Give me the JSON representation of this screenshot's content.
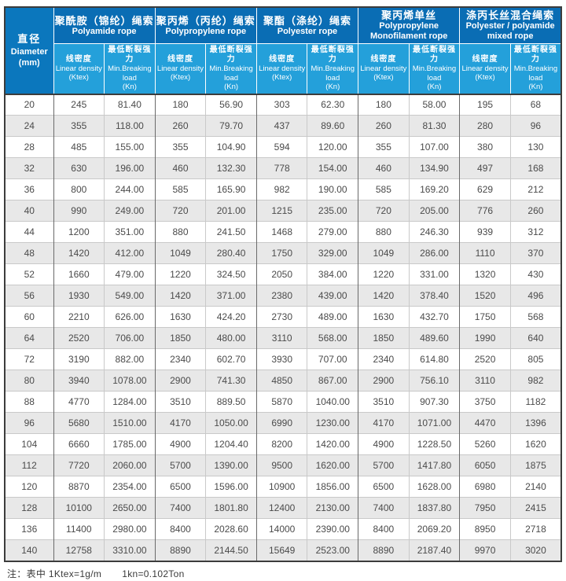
{
  "colors": {
    "header_dark": "#0a6db4",
    "header_light": "#24a0da",
    "diameter_bg": "#0b77bd",
    "stripe": "#e8e8e8",
    "border_dark": "#3c3c3c",
    "border_light": "#c9c9c9"
  },
  "table": {
    "diameter_header": {
      "zh": "直径",
      "en": "Diameter",
      "unit": "(mm)"
    },
    "groups": [
      {
        "zh": "聚酰胺（锦纶）绳索",
        "en": "Polyamide rope"
      },
      {
        "zh": "聚丙烯（丙纶）绳索",
        "en": "Polypropylene rope"
      },
      {
        "zh": "聚酯（涤纶）绳索",
        "en": "Polyester rope"
      },
      {
        "zh": "聚丙烯单丝",
        "en": "Polypropylene Monofilament rope"
      },
      {
        "zh": "涤丙长丝混合绳索",
        "en": "Polyester / polyamide mixed rope"
      }
    ],
    "subheader": {
      "linear": {
        "zh": "线密度",
        "en": "Linear density",
        "unit": "(Ktex)"
      },
      "breaking": {
        "zh": "最低断裂强力",
        "en": "Min.Breaking",
        "en2": "load",
        "unit": "(Kn)"
      }
    },
    "rows": [
      [
        "20",
        "245",
        "81.40",
        "180",
        "56.90",
        "303",
        "62.30",
        "180",
        "58.00",
        "195",
        "68"
      ],
      [
        "24",
        "355",
        "118.00",
        "260",
        "79.70",
        "437",
        "89.60",
        "260",
        "81.30",
        "280",
        "96"
      ],
      [
        "28",
        "485",
        "155.00",
        "355",
        "104.90",
        "594",
        "120.00",
        "355",
        "107.00",
        "380",
        "130"
      ],
      [
        "32",
        "630",
        "196.00",
        "460",
        "132.30",
        "778",
        "154.00",
        "460",
        "134.90",
        "497",
        "168"
      ],
      [
        "36",
        "800",
        "244.00",
        "585",
        "165.90",
        "982",
        "190.00",
        "585",
        "169.20",
        "629",
        "212"
      ],
      [
        "40",
        "990",
        "249.00",
        "720",
        "201.00",
        "1215",
        "235.00",
        "720",
        "205.00",
        "776",
        "260"
      ],
      [
        "44",
        "1200",
        "351.00",
        "880",
        "241.50",
        "1468",
        "279.00",
        "880",
        "246.30",
        "939",
        "312"
      ],
      [
        "48",
        "1420",
        "412.00",
        "1049",
        "280.40",
        "1750",
        "329.00",
        "1049",
        "286.00",
        "1110",
        "370"
      ],
      [
        "52",
        "1660",
        "479.00",
        "1220",
        "324.50",
        "2050",
        "384.00",
        "1220",
        "331.00",
        "1320",
        "430"
      ],
      [
        "56",
        "1930",
        "549.00",
        "1420",
        "371.00",
        "2380",
        "439.00",
        "1420",
        "378.40",
        "1520",
        "496"
      ],
      [
        "60",
        "2210",
        "626.00",
        "1630",
        "424.20",
        "2730",
        "489.00",
        "1630",
        "432.70",
        "1750",
        "568"
      ],
      [
        "64",
        "2520",
        "706.00",
        "1850",
        "480.00",
        "3110",
        "568.00",
        "1850",
        "489.60",
        "1990",
        "640"
      ],
      [
        "72",
        "3190",
        "882.00",
        "2340",
        "602.70",
        "3930",
        "707.00",
        "2340",
        "614.80",
        "2520",
        "805"
      ],
      [
        "80",
        "3940",
        "1078.00",
        "2900",
        "741.30",
        "4850",
        "867.00",
        "2900",
        "756.10",
        "3110",
        "982"
      ],
      [
        "88",
        "4770",
        "1284.00",
        "3510",
        "889.50",
        "5870",
        "1040.00",
        "3510",
        "907.30",
        "3750",
        "1182"
      ],
      [
        "96",
        "5680",
        "1510.00",
        "4170",
        "1050.00",
        "6990",
        "1230.00",
        "4170",
        "1071.00",
        "4470",
        "1396"
      ],
      [
        "104",
        "6660",
        "1785.00",
        "4900",
        "1204.40",
        "8200",
        "1420.00",
        "4900",
        "1228.50",
        "5260",
        "1620"
      ],
      [
        "112",
        "7720",
        "2060.00",
        "5700",
        "1390.00",
        "9500",
        "1620.00",
        "5700",
        "1417.80",
        "6050",
        "1875"
      ],
      [
        "120",
        "8870",
        "2354.00",
        "6500",
        "1596.00",
        "10900",
        "1856.00",
        "6500",
        "1628.00",
        "6980",
        "2140"
      ],
      [
        "128",
        "10100",
        "2650.00",
        "7400",
        "1801.80",
        "12400",
        "2130.00",
        "7400",
        "1837.80",
        "7950",
        "2415"
      ],
      [
        "136",
        "11400",
        "2980.00",
        "8400",
        "2028.60",
        "14000",
        "2390.00",
        "8400",
        "2069.20",
        "8950",
        "2718"
      ],
      [
        "140",
        "12758",
        "3310.00",
        "8890",
        "2144.50",
        "15649",
        "2523.00",
        "8890",
        "2187.40",
        "9970",
        "3020"
      ]
    ]
  },
  "note": {
    "prefix": "注：",
    "part1": "表中 1Ktex=1g/m",
    "part2": "1kn=0.102Ton"
  }
}
